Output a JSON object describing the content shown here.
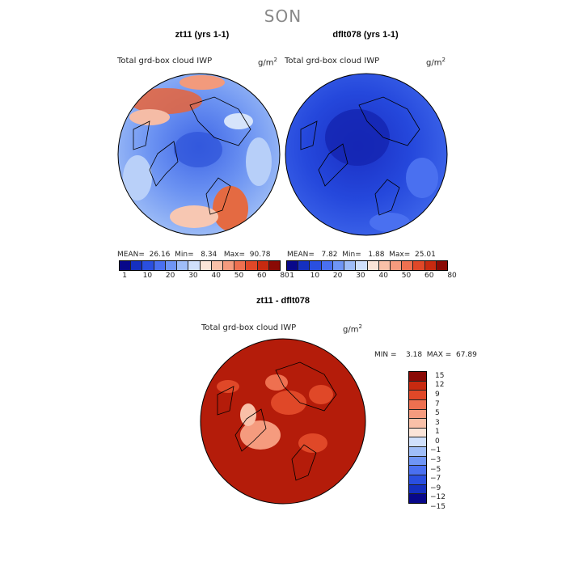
{
  "season": "SON",
  "panels": [
    {
      "title": "zt11 (yrs 1-1)",
      "variable": "Total grd-box cloud IWP",
      "units": "g/m",
      "units_exp": "2",
      "mean_label": "MEAN=",
      "mean": "26.16",
      "min_label": "Min=",
      "min": "8.34",
      "max_label": "Max=",
      "max": "90.78"
    },
    {
      "title": "dflt078 (yrs 1-1)",
      "variable": "Total grd-box cloud IWP",
      "units": "g/m",
      "units_exp": "2",
      "mean_label": "MEAN=",
      "mean": "7.82",
      "min_label": "Min=",
      "min": "1.88",
      "max_label": "Max=",
      "max": "25.01"
    },
    {
      "title": "zt11 - dflt078",
      "variable": "Total grd-box cloud IWP",
      "units": "g/m",
      "units_exp": "2",
      "min_label": "MIN =",
      "min": "3.18",
      "max_label": "MAX =",
      "max": "67.89"
    }
  ],
  "colorbar_top": {
    "colors": [
      "#08088a",
      "#1530c0",
      "#2a4fe0",
      "#4a70f0",
      "#6f95f5",
      "#9fbdf8",
      "#d0e0fc",
      "#fbe4d8",
      "#f9c0a8",
      "#f59b7e",
      "#ee7050",
      "#e04828",
      "#c82a10",
      "#8a0a05"
    ],
    "labels": [
      "1",
      "10",
      "20",
      "30",
      "40",
      "50",
      "60",
      "80"
    ]
  },
  "colorbar_diff": {
    "colors": [
      "#8a0a05",
      "#c82a10",
      "#e04828",
      "#ee7050",
      "#f59b7e",
      "#f9c0a8",
      "#fbe4d8",
      "#d0e0fc",
      "#9fbdf8",
      "#6f95f5",
      "#4a70f0",
      "#2a4fe0",
      "#1530c0",
      "#08088a"
    ],
    "labels": [
      "15",
      "12",
      "9",
      "7",
      "5",
      "3",
      "1",
      "0",
      "-1",
      "-3",
      "-5",
      "-7",
      "-9",
      "-12",
      "-15"
    ]
  }
}
